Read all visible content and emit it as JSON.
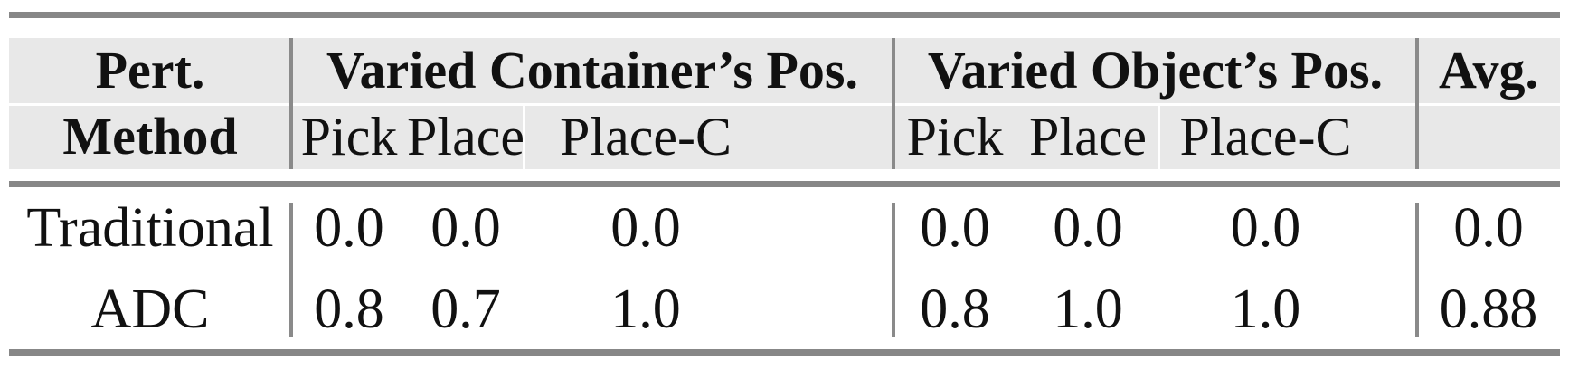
{
  "colors": {
    "rule_gray": "#878787",
    "divider_gray": "#8a8a8a",
    "header_background": "#e8e8e8",
    "text": "#111111",
    "page_background": "#ffffff"
  },
  "header": {
    "pert": "Pert.",
    "method": "Method",
    "group1_title": "Varied Container’s Pos.",
    "group2_title": "Varied Object’s Pos.",
    "avg": "Avg.",
    "group1_subcols": [
      "Pick",
      "Place",
      "Place-C"
    ],
    "group2_subcols": [
      "Pick",
      "Place",
      "Place-C"
    ]
  },
  "rows": [
    {
      "method": "Traditional",
      "g1": [
        "0.0",
        "0.0",
        "0.0"
      ],
      "g2": [
        "0.0",
        "0.0",
        "0.0"
      ],
      "avg": "0.0"
    },
    {
      "method": "ADC",
      "g1": [
        "0.8",
        "0.7",
        "1.0"
      ],
      "g2": [
        "0.8",
        "1.0",
        "1.0"
      ],
      "avg": "0.88"
    }
  ]
}
